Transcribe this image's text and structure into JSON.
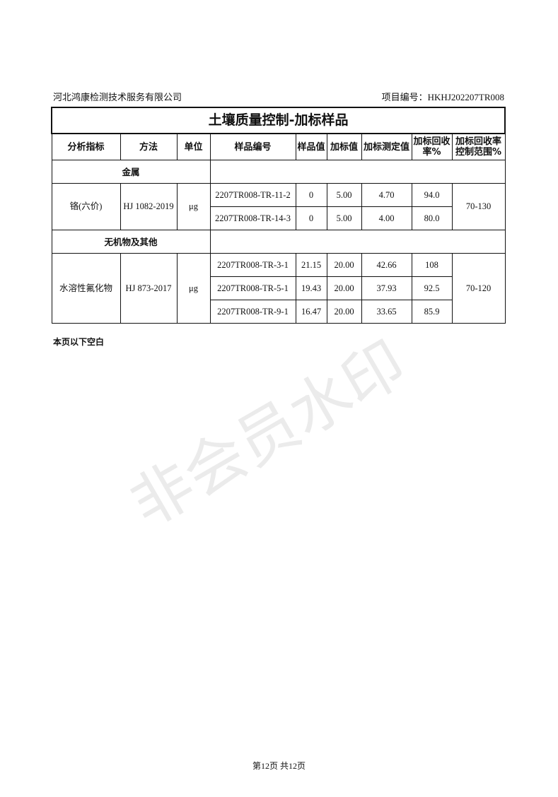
{
  "header": {
    "company": "河北鸿康检测技术服务有限公司",
    "project_no": "项目编号：HKHJ202207TR008"
  },
  "table": {
    "title": "土壤质量控制-加标样品",
    "columns": [
      "分析指标",
      "方法",
      "单位",
      "样品编号",
      "样品值",
      "加标值",
      "加标测定值",
      "加标回收率%",
      "加标回收率控制范围%"
    ],
    "groups": [
      {
        "category": "金属",
        "analyte": "铬(六价)",
        "method": "HJ 1082-2019",
        "unit": "μg",
        "range": "70-130",
        "rows": [
          [
            "2207TR008-TR-11-2",
            "0",
            "5.00",
            "4.70",
            "94.0"
          ],
          [
            "2207TR008-TR-14-3",
            "0",
            "5.00",
            "4.00",
            "80.0"
          ]
        ]
      },
      {
        "category": "无机物及其他",
        "analyte": "水溶性氟化物",
        "method": "HJ 873-2017",
        "unit": "μg",
        "range": "70-120",
        "rows": [
          [
            "2207TR008-TR-3-1",
            "21.15",
            "20.00",
            "42.66",
            "108"
          ],
          [
            "2207TR008-TR-5-1",
            "19.43",
            "20.00",
            "37.93",
            "92.5"
          ],
          [
            "2207TR008-TR-9-1",
            "16.47",
            "20.00",
            "33.65",
            "85.9"
          ]
        ]
      }
    ]
  },
  "note": "本页以下空白",
  "footer": "第12页  共12页",
  "watermark": "非会员水印"
}
